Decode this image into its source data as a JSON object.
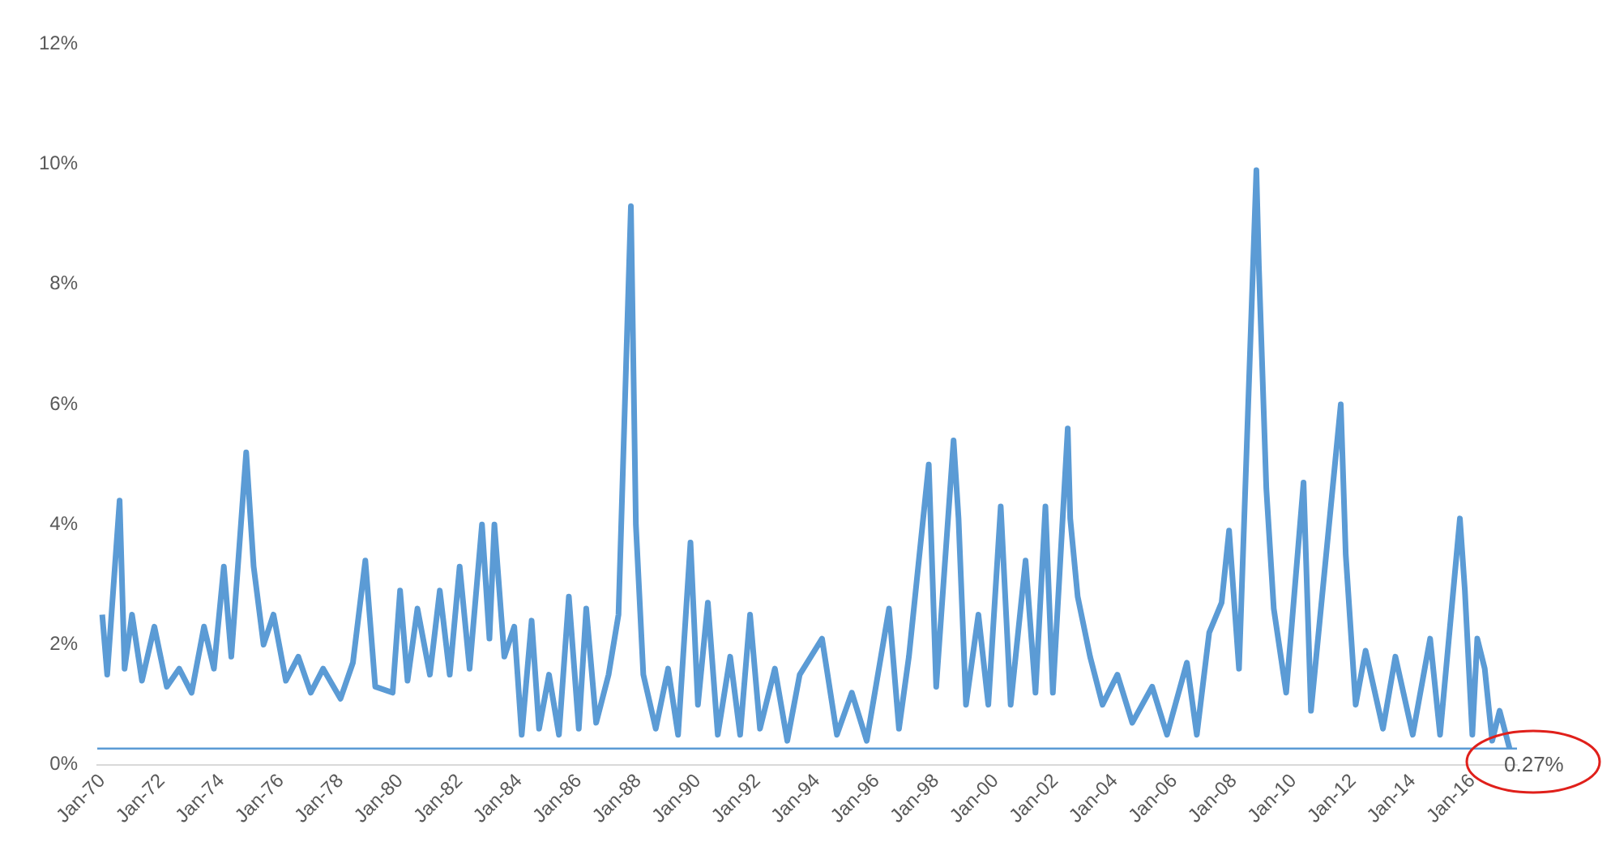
{
  "chart_data": {
    "type": "line",
    "x": [
      "1970-01",
      "1970-03",
      "1970-08",
      "1970-10",
      "1971-01",
      "1971-05",
      "1971-10",
      "1972-03",
      "1972-08",
      "1973-01",
      "1973-06",
      "1973-10",
      "1974-02",
      "1974-05",
      "1974-11",
      "1975-02",
      "1975-06",
      "1975-10",
      "1976-03",
      "1976-08",
      "1977-01",
      "1977-06",
      "1978-01",
      "1978-06",
      "1978-11",
      "1979-03",
      "1979-10",
      "1980-01",
      "1980-04",
      "1980-08",
      "1981-01",
      "1981-05",
      "1981-09",
      "1982-01",
      "1982-05",
      "1982-10",
      "1983-01",
      "1983-03",
      "1983-07",
      "1983-11",
      "1984-02",
      "1984-06",
      "1984-09",
      "1985-01",
      "1985-05",
      "1985-09",
      "1986-01",
      "1986-04",
      "1986-08",
      "1987-01",
      "1987-05",
      "1987-10",
      "1987-12",
      "1988-03",
      "1988-08",
      "1989-01",
      "1989-05",
      "1989-10",
      "1990-01",
      "1990-05",
      "1990-09",
      "1991-02",
      "1991-06",
      "1991-10",
      "1992-02",
      "1992-08",
      "1993-01",
      "1993-06",
      "1994-03",
      "1994-09",
      "1995-03",
      "1995-09",
      "1996-06",
      "1996-10",
      "1997-02",
      "1997-10",
      "1998-01",
      "1998-08",
      "1998-10",
      "1999-01",
      "1999-06",
      "1999-10",
      "2000-03",
      "2000-07",
      "2001-01",
      "2001-05",
      "2001-09",
      "2001-12",
      "2002-06",
      "2002-07",
      "2002-10",
      "2003-03",
      "2003-08",
      "2004-02",
      "2004-08",
      "2005-04",
      "2005-10",
      "2006-06",
      "2006-10",
      "2007-03",
      "2007-08",
      "2007-11",
      "2008-03",
      "2008-10",
      "2008-11",
      "2009-02",
      "2009-05",
      "2009-10",
      "2010-05",
      "2010-08",
      "2011-08",
      "2011-10",
      "2012-02",
      "2012-06",
      "2013-01",
      "2013-06",
      "2014-01",
      "2014-08",
      "2014-12",
      "2015-08",
      "2015-10",
      "2016-01",
      "2016-03",
      "2016-06",
      "2016-09",
      "2016-12",
      "2017-04"
    ],
    "series": [
      {
        "color": "#5b9bd5",
        "values": [
          2.5,
          1.5,
          4.4,
          1.6,
          2.5,
          1.4,
          2.3,
          1.3,
          1.6,
          1.2,
          2.3,
          1.6,
          3.3,
          1.8,
          5.2,
          3.3,
          2.0,
          2.5,
          1.4,
          1.8,
          1.2,
          1.6,
          1.1,
          1.7,
          3.4,
          1.3,
          1.2,
          2.9,
          1.4,
          2.6,
          1.5,
          2.9,
          1.5,
          3.3,
          1.6,
          4.0,
          2.1,
          4.0,
          1.8,
          2.3,
          0.5,
          2.4,
          0.6,
          1.5,
          0.5,
          2.8,
          0.6,
          2.6,
          0.7,
          1.5,
          2.5,
          9.3,
          4.0,
          1.5,
          0.6,
          1.6,
          0.5,
          3.7,
          1.0,
          2.7,
          0.5,
          1.8,
          0.5,
          2.5,
          0.6,
          1.6,
          0.4,
          1.5,
          2.1,
          0.5,
          1.2,
          0.4,
          2.6,
          0.6,
          1.8,
          5.0,
          1.3,
          5.4,
          4.1,
          1.0,
          2.5,
          1.0,
          4.3,
          1.0,
          3.4,
          1.2,
          4.3,
          1.2,
          5.6,
          4.1,
          2.8,
          1.8,
          1.0,
          1.5,
          0.7,
          1.3,
          0.5,
          1.7,
          0.5,
          2.2,
          2.7,
          3.9,
          1.6,
          9.9,
          8.3,
          4.6,
          2.6,
          1.2,
          4.7,
          0.9,
          6.0,
          3.5,
          1.0,
          1.9,
          0.6,
          1.8,
          0.5,
          2.1,
          0.5,
          4.1,
          2.9,
          0.5,
          2.1,
          1.6,
          0.4,
          0.9,
          0.27
        ]
      }
    ],
    "xlim": [
      "1969-11",
      "2017-07"
    ],
    "xticks": [
      {
        "value": "1970-01",
        "label": "Jan-70"
      },
      {
        "value": "1972-01",
        "label": "Jan-72"
      },
      {
        "value": "1974-01",
        "label": "Jan-74"
      },
      {
        "value": "1976-01",
        "label": "Jan-76"
      },
      {
        "value": "1978-01",
        "label": "Jan-78"
      },
      {
        "value": "1980-01",
        "label": "Jan-80"
      },
      {
        "value": "1982-01",
        "label": "Jan-82"
      },
      {
        "value": "1984-01",
        "label": "Jan-84"
      },
      {
        "value": "1986-01",
        "label": "Jan-86"
      },
      {
        "value": "1988-01",
        "label": "Jan-88"
      },
      {
        "value": "1990-01",
        "label": "Jan-90"
      },
      {
        "value": "1992-01",
        "label": "Jan-92"
      },
      {
        "value": "1994-01",
        "label": "Jan-94"
      },
      {
        "value": "1996-01",
        "label": "Jan-96"
      },
      {
        "value": "1998-01",
        "label": "Jan-98"
      },
      {
        "value": "2000-01",
        "label": "Jan-00"
      },
      {
        "value": "2002-01",
        "label": "Jan-02"
      },
      {
        "value": "2004-01",
        "label": "Jan-04"
      },
      {
        "value": "2006-01",
        "label": "Jan-06"
      },
      {
        "value": "2008-01",
        "label": "Jan-08"
      },
      {
        "value": "2010-01",
        "label": "Jan-10"
      },
      {
        "value": "2012-01",
        "label": "Jan-12"
      },
      {
        "value": "2014-01",
        "label": "Jan-14"
      },
      {
        "value": "2016-01",
        "label": "Jan-16"
      }
    ],
    "ylim": [
      0,
      12
    ],
    "yticks": [
      {
        "value": 0,
        "label": "0%"
      },
      {
        "value": 2,
        "label": "2%"
      },
      {
        "value": 4,
        "label": "4%"
      },
      {
        "value": 6,
        "label": "6%"
      },
      {
        "value": 8,
        "label": "8%"
      },
      {
        "value": 10,
        "label": "10%"
      },
      {
        "value": 12,
        "label": "12%"
      }
    ],
    "ref_lines": [
      {
        "axis": "y",
        "value": 0.27,
        "label": "0.27%",
        "color": "#5b9bd5"
      }
    ],
    "grid": false,
    "legend": false,
    "marker": "none",
    "line_style": "solid"
  }
}
